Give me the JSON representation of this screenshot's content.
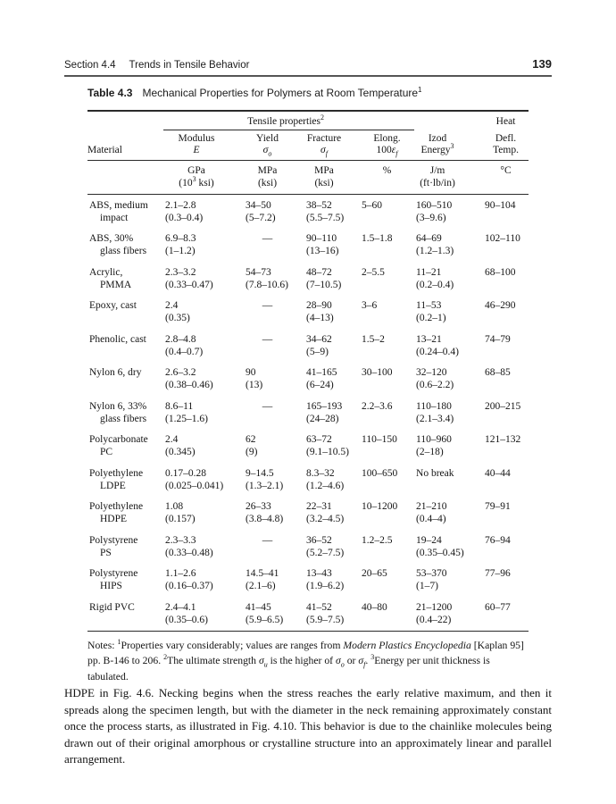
{
  "header": {
    "section": "Section 4.4",
    "title": "Trends in Tensile Behavior",
    "page_number": "139"
  },
  "table": {
    "label": "Table 4.3",
    "title": "Mechanical Properties for Polymers at Room Temperature",
    "title_sup": "1",
    "group": {
      "tensile": "Tensile properties",
      "tensile_sup": "2",
      "heat": "Heat"
    },
    "head": {
      "material": "Material",
      "modulus1": "Modulus",
      "modulus2": "E",
      "yield1": "Yield",
      "yield2_sym": "σ",
      "yield2_sub": "o",
      "fracture1": "Fracture",
      "fracture2_sym": "σ",
      "fracture2_sub": "f",
      "elong1": "Elong.",
      "elong2_num": "100",
      "elong2_sym": "ε",
      "elong2_sub": "f",
      "izod1": "Izod",
      "izod2": "Energy",
      "izod2_sup": "3",
      "heat2": "Defl.",
      "heat3": "Temp."
    },
    "units": {
      "modulus1": "GPa",
      "modulus2a": "(10",
      "modulus2_sup": "3",
      "modulus2b": " ksi)",
      "yield1": "MPa",
      "yield2": "(ksi)",
      "fracture1": "MPa",
      "fracture2": "(ksi)",
      "elong": "%",
      "izod1": "J/m",
      "izod2": "(ft·lb/in)",
      "heat": "°C"
    },
    "rows": [
      {
        "m1": "ABS, medium",
        "m2": "impact",
        "mod1": "2.1–2.8",
        "mod2": "(0.3–0.4)",
        "y1": "34–50",
        "y2": "(5–7.2)",
        "f1": "38–52",
        "f2": "(5.5–7.5)",
        "e1": "5–60",
        "i1": "160–510",
        "i2": "(3–9.6)",
        "h1": "90–104"
      },
      {
        "m1": "ABS, 30%",
        "m2": "glass fibers",
        "mod1": "6.9–8.3",
        "mod2": "(1–1.2)",
        "y1": "—",
        "y2": "",
        "f1": "90–110",
        "f2": "(13–16)",
        "e1": "1.5–1.8",
        "i1": "64–69",
        "i2": "(1.2–1.3)",
        "h1": "102–110"
      },
      {
        "m1": "Acrylic,",
        "m2": "PMMA",
        "mod1": "2.3–3.2",
        "mod2": "(0.33–0.47)",
        "y1": "54–73",
        "y2": "(7.8–10.6)",
        "f1": "48–72",
        "f2": "(7–10.5)",
        "e1": "2–5.5",
        "i1": "11–21",
        "i2": "(0.2–0.4)",
        "h1": "68–100"
      },
      {
        "m1": "Epoxy, cast",
        "m2": "",
        "mod1": "2.4",
        "mod2": "(0.35)",
        "y1": "—",
        "y2": "",
        "f1": "28–90",
        "f2": "(4–13)",
        "e1": "3–6",
        "i1": "11–53",
        "i2": "(0.2–1)",
        "h1": "46–290"
      },
      {
        "m1": "Phenolic, cast",
        "m2": "",
        "mod1": "2.8–4.8",
        "mod2": "(0.4–0.7)",
        "y1": "—",
        "y2": "",
        "f1": "34–62",
        "f2": "(5–9)",
        "e1": "1.5–2",
        "i1": "13–21",
        "i2": "(0.24–0.4)",
        "h1": "74–79"
      },
      {
        "m1": "Nylon 6, dry",
        "m2": "",
        "mod1": "2.6–3.2",
        "mod2": "(0.38–0.46)",
        "y1": "90",
        "y2": "(13)",
        "f1": "41–165",
        "f2": "(6–24)",
        "e1": "30–100",
        "i1": "32–120",
        "i2": "(0.6–2.2)",
        "h1": "68–85"
      },
      {
        "m1": "Nylon 6, 33%",
        "m2": "glass fibers",
        "mod1": "8.6–11",
        "mod2": "(1.25–1.6)",
        "y1": "—",
        "y2": "",
        "f1": "165–193",
        "f2": "(24–28)",
        "e1": "2.2–3.6",
        "i1": "110–180",
        "i2": "(2.1–3.4)",
        "h1": "200–215"
      },
      {
        "m1": "Polycarbonate",
        "m2": "PC",
        "mod1": "2.4",
        "mod2": "(0.345)",
        "y1": "62",
        "y2": "(9)",
        "f1": "63–72",
        "f2": "(9.1–10.5)",
        "e1": "110–150",
        "i1": "110–960",
        "i2": "(2–18)",
        "h1": "121–132"
      },
      {
        "m1": "Polyethylene",
        "m2": "LDPE",
        "mod1": "0.17–0.28",
        "mod2": "(0.025–0.041)",
        "y1": "9–14.5",
        "y2": "(1.3–2.1)",
        "f1": "8.3–32",
        "f2": "(1.2–4.6)",
        "e1": "100–650",
        "i1": "No break",
        "i2": "",
        "h1": "40–44"
      },
      {
        "m1": "Polyethylene",
        "m2": "HDPE",
        "mod1": "1.08",
        "mod2": "(0.157)",
        "y1": "26–33",
        "y2": "(3.8–4.8)",
        "f1": "22–31",
        "f2": "(3.2–4.5)",
        "e1": "10–1200",
        "i1": "21–210",
        "i2": "(0.4–4)",
        "h1": "79–91"
      },
      {
        "m1": "Polystyrene",
        "m2": "PS",
        "mod1": "2.3–3.3",
        "mod2": "(0.33–0.48)",
        "y1": "—",
        "y2": "",
        "f1": "36–52",
        "f2": "(5.2–7.5)",
        "e1": "1.2–2.5",
        "i1": "19–24",
        "i2": "(0.35–0.45)",
        "h1": "76–94"
      },
      {
        "m1": "Polystyrene",
        "m2": "HIPS",
        "mod1": "1.1–2.6",
        "mod2": "(0.16–0.37)",
        "y1": "14.5–41",
        "y2": "(2.1–6)",
        "f1": "13–43",
        "f2": "(1.9–6.2)",
        "e1": "20–65",
        "i1": "53–370",
        "i2": "(1–7)",
        "h1": "77–96"
      },
      {
        "m1": "Rigid PVC",
        "m2": "",
        "mod1": "2.4–4.1",
        "mod2": "(0.35–0.6)",
        "y1": "41–45",
        "y2": "(5.9–6.5)",
        "f1": "41–52",
        "f2": "(5.9–7.5)",
        "e1": "40–80",
        "i1": "21–1200",
        "i2": "(0.4–22)",
        "h1": "60–77"
      }
    ]
  },
  "notes": {
    "label": "Notes: ",
    "n1_sup": "1",
    "n1a": "Properties vary considerably; values are ranges from ",
    "n1_italic": "Modern Plastics Encyclopedia",
    "n1b": " [Kaplan 95] pp. B-146 to 206.  ",
    "n2_sup": "2",
    "n2a": "The ultimate strength ",
    "n2_sym1": "σ",
    "n2_sub1": "u",
    "n2b": " is the higher of ",
    "n2_sym2": "σ",
    "n2_sub2": "o",
    "n2c": " or ",
    "n2_sym3": "σ",
    "n2_sub3": "f",
    "n2d": ".  ",
    "n3_sup": "3",
    "n3": "Energy per unit thickness is tabulated."
  },
  "body_paragraph": "HDPE in Fig. 4.6. Necking begins when the stress reaches the early relative maximum, and then it spreads along the specimen length, but with the diameter in the neck remaining approximately constant once the process starts, as illustrated in Fig. 4.10. This behavior is due to the chainlike molecules being drawn out of their original amorphous or crystalline structure into an approximately linear and parallel arrangement."
}
